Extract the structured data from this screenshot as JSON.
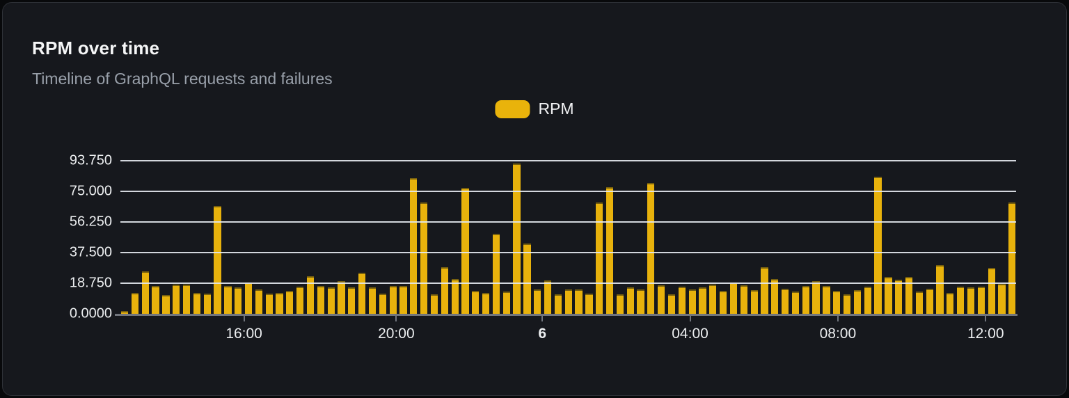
{
  "card": {
    "title": "RPM over time",
    "subtitle": "Timeline of GraphQL requests and failures"
  },
  "legend": {
    "label": "RPM",
    "swatch_color": "#e9b30b"
  },
  "chart_data": {
    "type": "bar",
    "title": "RPM over time",
    "subtitle": "Timeline of GraphQL requests and failures",
    "ylabel": "",
    "xlabel": "",
    "ylim": [
      0,
      93.75
    ],
    "grid": true,
    "legend_position": "top-center",
    "bar_color": "#e8b20c",
    "y_ticks": [
      "93.750",
      "75.000",
      "56.250",
      "37.500",
      "18.750",
      "0.0000"
    ],
    "x_ticks": [
      {
        "label": "16:00",
        "pos": 0.138,
        "bold": false
      },
      {
        "label": "20:00",
        "pos": 0.308,
        "bold": false
      },
      {
        "label": "6",
        "pos": 0.471,
        "bold": true
      },
      {
        "label": "04:00",
        "pos": 0.636,
        "bold": false
      },
      {
        "label": "08:00",
        "pos": 0.801,
        "bold": false
      },
      {
        "label": "12:00",
        "pos": 0.966,
        "bold": false
      }
    ],
    "series": [
      {
        "name": "RPM",
        "values": [
          1.5,
          13,
          26,
          17,
          11.5,
          18,
          18,
          13,
          12.5,
          66,
          17,
          16,
          19,
          15,
          12.5,
          13,
          14,
          16.5,
          23,
          17,
          16,
          20,
          16,
          25,
          16,
          12.5,
          17,
          17,
          83,
          68,
          12,
          28.5,
          21.5,
          77,
          14,
          13,
          49,
          13.5,
          92,
          43,
          15,
          20.5,
          12,
          15,
          15,
          12.5,
          68,
          77.5,
          12,
          16,
          15,
          80,
          17.5,
          12,
          16.5,
          15,
          16,
          18,
          14,
          19,
          17.5,
          14.5,
          28.5,
          21.5,
          15.5,
          13.5,
          17,
          20,
          17,
          14,
          12,
          14.5,
          16.5,
          84,
          22.5,
          21,
          22.5,
          13.5,
          15.5,
          30,
          13,
          16.5,
          16,
          16.5,
          28,
          18.5,
          68
        ]
      }
    ]
  }
}
